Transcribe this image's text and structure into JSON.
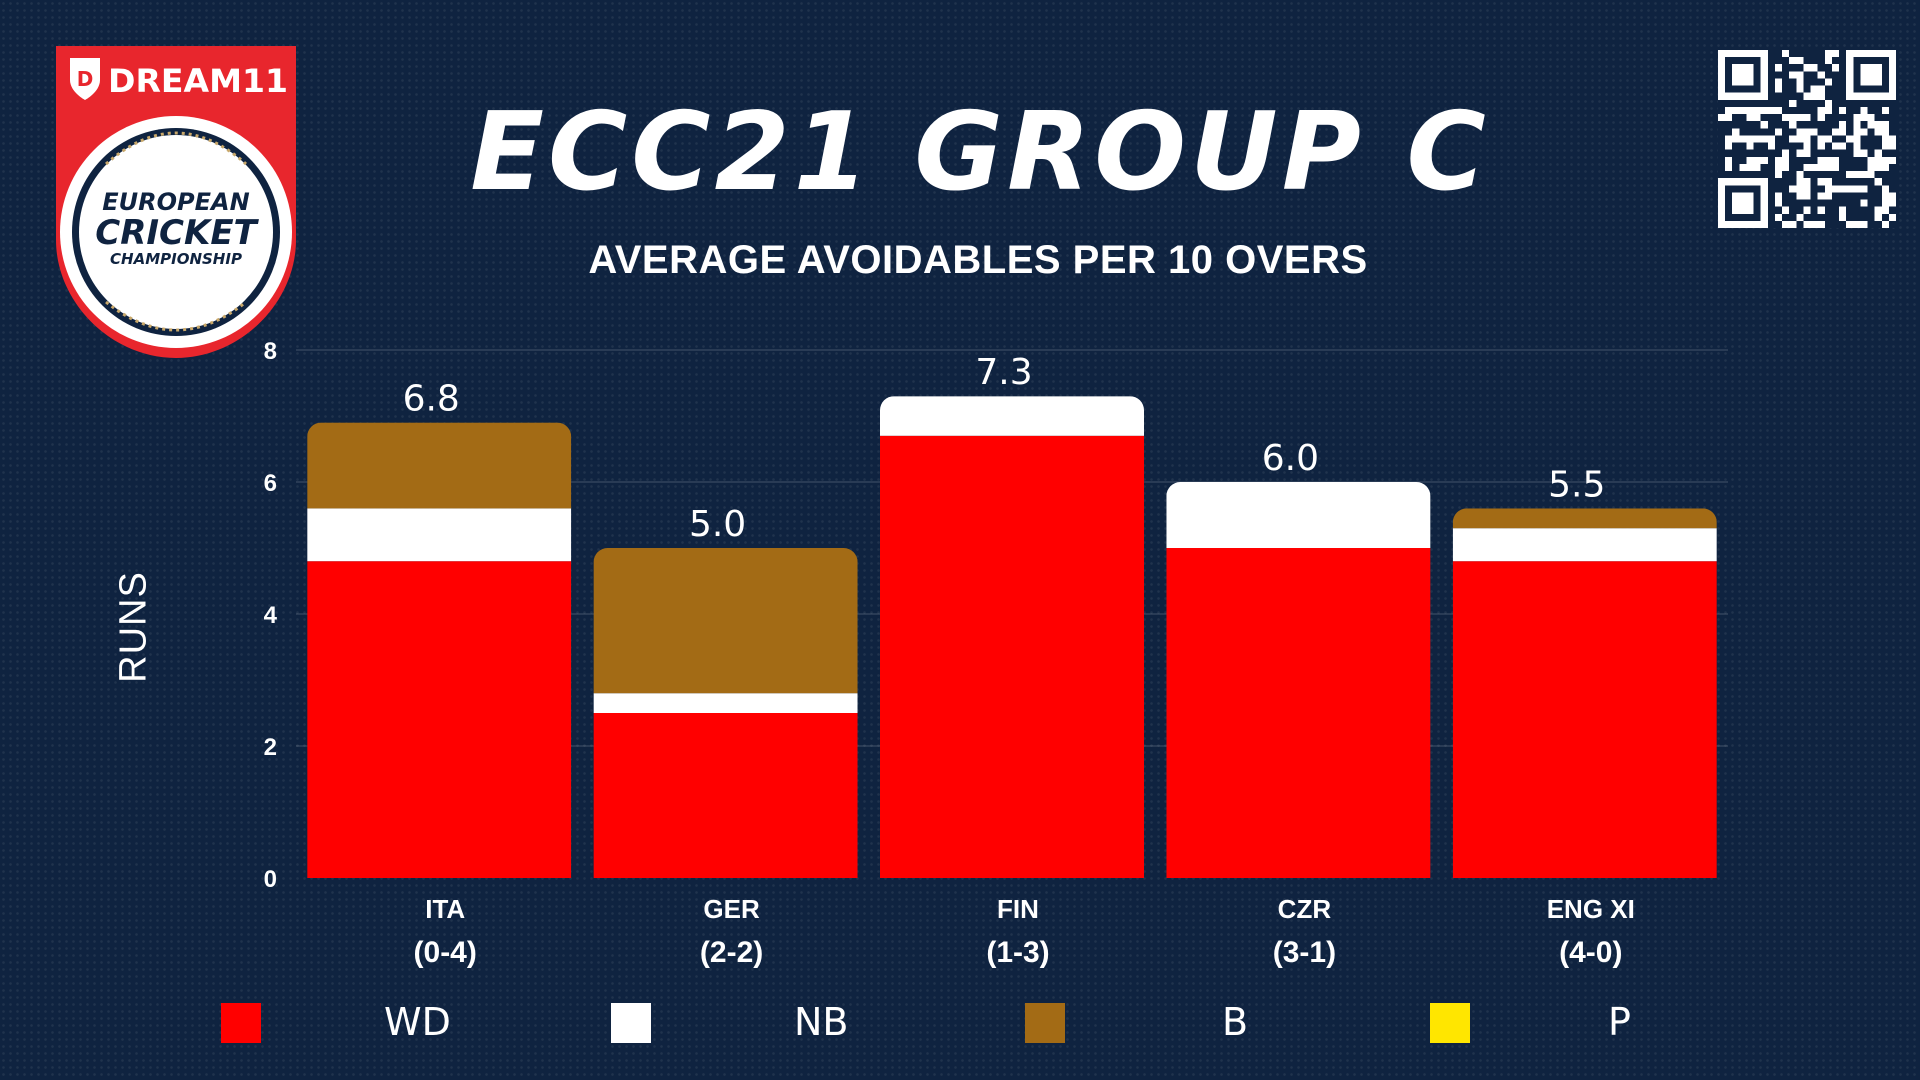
{
  "logo": {
    "brand": "DREAM11",
    "line1": "EUROPEAN",
    "line2": "CRICKET",
    "line3": "CHAMPIONSHIP"
  },
  "title": "ECC21 GROUP C",
  "subtitle": "AVERAGE AVOIDABLES PER 10 OVERS",
  "colors": {
    "background": "#0f2340",
    "WD": "#ff0000",
    "NB": "#ffffff",
    "B": "#a36b15",
    "P": "#ffe600",
    "logo_red": "#e8262d"
  },
  "chart_data": {
    "type": "bar",
    "stacked": true,
    "title": "AVERAGE AVOIDABLES PER 10 OVERS",
    "ylabel": "RUNS",
    "xlabel": "",
    "ylim": [
      0,
      8
    ],
    "yticks": [
      0,
      2,
      4,
      6,
      8
    ],
    "grid": true,
    "legend_position": "bottom",
    "categories": [
      "ITA",
      "GER",
      "FIN",
      "CZR",
      "ENG XI"
    ],
    "records": [
      "(0-4)",
      "(2-2)",
      "(1-3)",
      "(3-1)",
      "(4-0)"
    ],
    "totals": [
      "6.8",
      "5.0",
      "7.3",
      "6.0",
      "5.5"
    ],
    "series": [
      {
        "name": "WD",
        "values": [
          4.8,
          2.5,
          6.7,
          5.0,
          4.8
        ]
      },
      {
        "name": "NB",
        "values": [
          0.8,
          0.3,
          0.6,
          1.0,
          0.5
        ]
      },
      {
        "name": "B",
        "values": [
          1.3,
          2.2,
          0.0,
          0.0,
          0.3
        ]
      },
      {
        "name": "P",
        "values": [
          0.0,
          0.0,
          0.0,
          0.0,
          0.0
        ]
      }
    ]
  },
  "legend": [
    {
      "label": "WD",
      "color": "#ff0000"
    },
    {
      "label": "NB",
      "color": "#ffffff"
    },
    {
      "label": "B",
      "color": "#a36b15"
    },
    {
      "label": "P",
      "color": "#ffe600"
    }
  ]
}
